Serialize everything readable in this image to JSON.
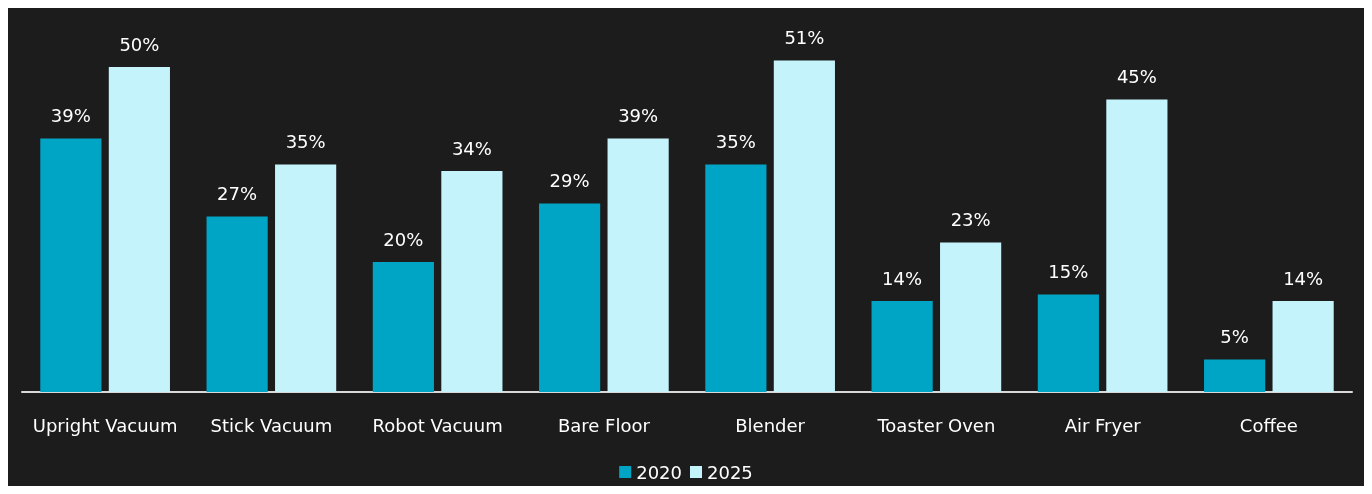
{
  "chart_data": {
    "type": "bar",
    "categories": [
      "Upright Vacuum",
      "Stick Vacuum",
      "Robot Vacuum",
      "Bare Floor",
      "Blender",
      "Toaster Oven",
      "Air Fryer",
      "Coffee"
    ],
    "series": [
      {
        "name": "2020",
        "color": "#00a5c6",
        "values": [
          39,
          27,
          20,
          29,
          35,
          14,
          15,
          5
        ],
        "value_labels": [
          "39%",
          "27%",
          "20%",
          "29%",
          "35%",
          "14%",
          "15%",
          "5%"
        ]
      },
      {
        "name": "2025",
        "color": "#c5f3fc",
        "values": [
          50,
          35,
          34,
          39,
          51,
          23,
          45,
          14
        ],
        "value_labels": [
          "50%",
          "35%",
          "34%",
          "39%",
          "51%",
          "23%",
          "45%",
          "14%"
        ]
      }
    ],
    "legend": "bottom",
    "grid": false
  }
}
